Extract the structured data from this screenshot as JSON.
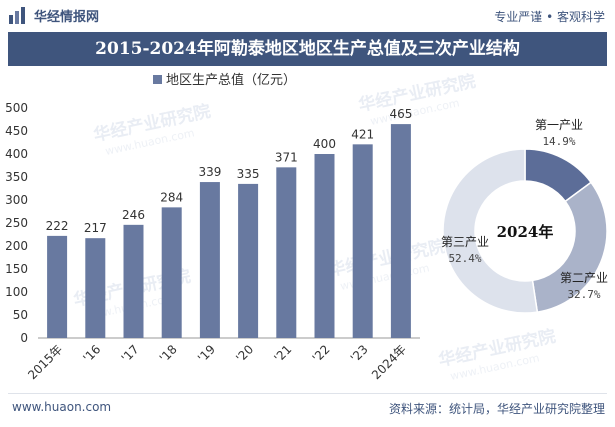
{
  "header": {
    "brand": "华经情报网",
    "slogan": "专业严谨 • 客观科学",
    "title": "2015-2024年阿勒泰地区地区生产总值及三次产业结构"
  },
  "watermarks": [
    "华经产业研究院",
    "www.huaon.com"
  ],
  "footer": {
    "url": "www.huaon.com",
    "source": "资料来源：统计局，华经产业研究院整理"
  },
  "colors": {
    "bar": "#6879a0",
    "title_bg": "#3f557d",
    "donut": [
      "#5c6d98",
      "#aab3c9",
      "#dde2ec"
    ]
  },
  "chart_data": [
    {
      "type": "bar",
      "legend": "地区生产总值（亿元）",
      "categories": [
        "2015年",
        "'16",
        "'17",
        "'18",
        "'19",
        "'20",
        "'21",
        "'22",
        "'23",
        "2024年"
      ],
      "values": [
        222,
        217,
        246,
        284,
        339,
        335,
        371,
        400,
        421,
        465
      ],
      "ylim": [
        0,
        500
      ],
      "yticks": [
        "0",
        "50",
        "100",
        "150",
        "200",
        "250",
        "300",
        "350",
        "400",
        "450",
        "500"
      ],
      "grid": false
    },
    {
      "type": "pie",
      "center_label": "2024年",
      "slices": [
        {
          "name": "第一产业",
          "value": 14.9,
          "label": "14.9%"
        },
        {
          "name": "第二产业",
          "value": 32.7,
          "label": "32.7%"
        },
        {
          "name": "第三产业",
          "value": 52.4,
          "label": "52.4%"
        }
      ]
    }
  ]
}
